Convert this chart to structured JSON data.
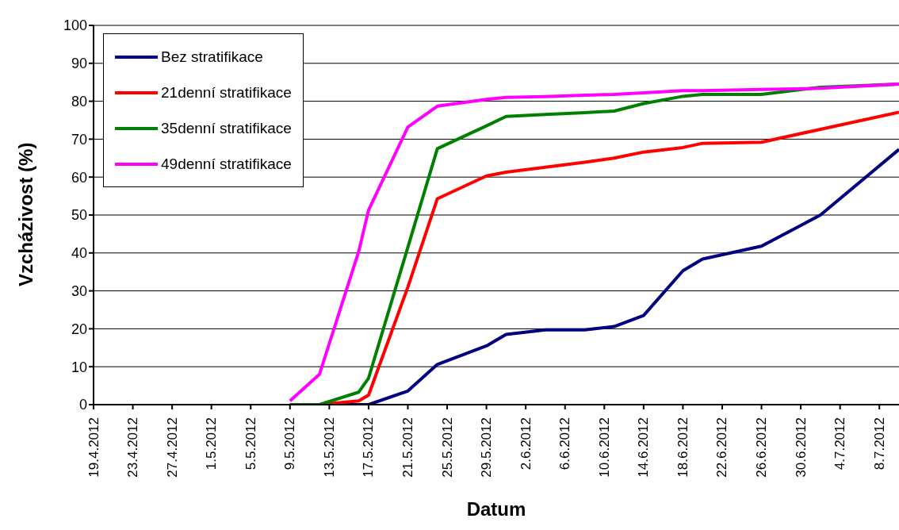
{
  "chart_data": {
    "type": "line",
    "xlabel": "Datum",
    "ylabel": "Vzcházivost (%)",
    "x": [
      "2012-05-09",
      "2012-05-12",
      "2012-05-16",
      "2012-05-17",
      "2012-05-21",
      "2012-05-24",
      "2012-05-29",
      "2012-05-31",
      "2012-06-04",
      "2012-06-08",
      "2012-06-11",
      "2012-06-14",
      "2012-06-18",
      "2012-06-20",
      "2012-06-26",
      "2012-07-02",
      "2012-07-10"
    ],
    "series": [
      {
        "name": "Bez stratifikace",
        "color": "#000080",
        "values": [
          0,
          0,
          0,
          0,
          3.6,
          10.6,
          15.5,
          18.5,
          19.7,
          19.7,
          20.6,
          23.5,
          35.3,
          38.4,
          41.8,
          50,
          67.3
        ]
      },
      {
        "name": "21denní stratifikace",
        "color": "#ff0000",
        "values": [
          0,
          0,
          1,
          2.5,
          31,
          54.3,
          60.3,
          61.3,
          62.6,
          63.9,
          65,
          66.6,
          67.8,
          68.9,
          69.2,
          72.6,
          77.1
        ]
      },
      {
        "name": "35denní stratifikace",
        "color": "#008000",
        "values": [
          0,
          0,
          3.3,
          7,
          41.5,
          67.5,
          73.5,
          76,
          76.5,
          77,
          77.4,
          79.4,
          81.3,
          81.8,
          81.8,
          83.7,
          84.5
        ]
      },
      {
        "name": "49denní stratifikace",
        "color": "#ff00ff",
        "values": [
          1,
          8,
          40.4,
          51.3,
          73.2,
          78.7,
          80.5,
          81,
          81.2,
          81.6,
          81.8,
          82.2,
          82.8,
          82.8,
          83.1,
          83.4,
          84.5
        ]
      }
    ],
    "xlim": [
      "2012-04-19",
      "2012-07-10"
    ],
    "xticks": [
      {
        "value": "2012-04-19",
        "label": "19.4.2012"
      },
      {
        "value": "2012-04-23",
        "label": "23.4.2012"
      },
      {
        "value": "2012-04-27",
        "label": "27.4.2012"
      },
      {
        "value": "2012-05-01",
        "label": "1.5.2012"
      },
      {
        "value": "2012-05-05",
        "label": "5.5.2012"
      },
      {
        "value": "2012-05-09",
        "label": "9.5.2012"
      },
      {
        "value": "2012-05-13",
        "label": "13.5.2012"
      },
      {
        "value": "2012-05-17",
        "label": "17.5.2012"
      },
      {
        "value": "2012-05-21",
        "label": "21.5.2012"
      },
      {
        "value": "2012-05-25",
        "label": "25.5.2012"
      },
      {
        "value": "2012-05-29",
        "label": "29.5.2012"
      },
      {
        "value": "2012-06-02",
        "label": "2.6.2012"
      },
      {
        "value": "2012-06-06",
        "label": "6.6.2012"
      },
      {
        "value": "2012-06-10",
        "label": "10.6.2012"
      },
      {
        "value": "2012-06-14",
        "label": "14.6.2012"
      },
      {
        "value": "2012-06-18",
        "label": "18.6.2012"
      },
      {
        "value": "2012-06-22",
        "label": "22.6.2012"
      },
      {
        "value": "2012-06-26",
        "label": "26.6.2012"
      },
      {
        "value": "2012-06-30",
        "label": "30.6.2012"
      },
      {
        "value": "2012-07-04",
        "label": "4.7.2012"
      },
      {
        "value": "2012-07-08",
        "label": "8.7.2012"
      }
    ],
    "ylim": [
      0,
      100
    ],
    "yticks": [
      0,
      10,
      20,
      30,
      40,
      50,
      60,
      70,
      80,
      90,
      100
    ],
    "grid": "y",
    "legend": "top left",
    "marker": "none",
    "line_style": "solid"
  }
}
